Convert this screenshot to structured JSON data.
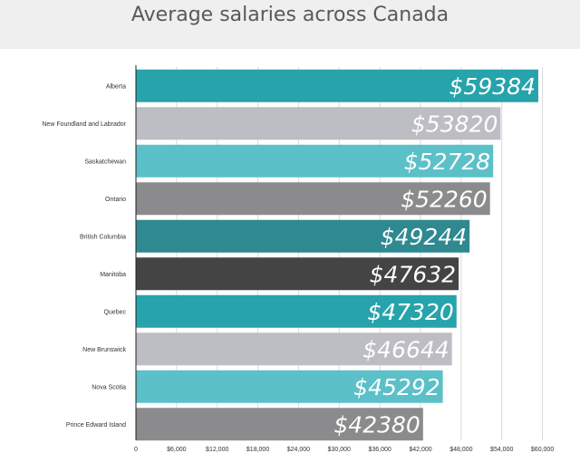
{
  "title": "Average salaries across Canada",
  "chart_data": {
    "type": "bar",
    "orientation": "horizontal",
    "title": "Average salaries across Canada",
    "xlabel": "",
    "ylabel": "",
    "xlim": [
      0,
      63000
    ],
    "grid": true,
    "categories": [
      "Alberta",
      "New Foundland and Labrador",
      "Saskatchewan",
      "Ontario",
      "British Columbia",
      "Manitoba",
      "Quebec",
      "New Brunswick",
      "Nova Scotia",
      "Prince Edward Island"
    ],
    "values": [
      59384,
      53820,
      52728,
      52260,
      49244,
      47632,
      47320,
      46644,
      45292,
      42380
    ],
    "value_labels": [
      "$59384",
      "$53820",
      "$52728",
      "$52260",
      "$49244",
      "$47632",
      "$47320",
      "$46644",
      "$45292",
      "$42380"
    ],
    "colors": [
      "#27a3ab",
      "#bdbdc4",
      "#5cc0c8",
      "#8b8b8d",
      "#2f8991",
      "#444444",
      "#27a3ab",
      "#bdbdc4",
      "#5cc0c8",
      "#8b8b8d"
    ],
    "ticks": [
      0,
      6000,
      12000,
      18000,
      24000,
      30000,
      36000,
      42000,
      48000,
      54000,
      60000
    ],
    "tick_labels": [
      "0",
      "$6,000",
      "$12,000",
      "$18,000",
      "$24,000",
      "$30,000",
      "$36,000",
      "$42,000",
      "$48,000",
      "$54,000",
      "$60,000"
    ]
  }
}
